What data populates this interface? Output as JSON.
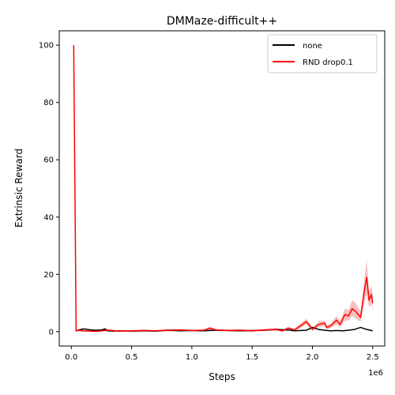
{
  "chart_data": {
    "type": "line",
    "title": "DMMaze-difficult++",
    "xlabel": "Steps",
    "ylabel": "Extrinsic Reward",
    "x_offset_label": "1e6",
    "xlim": [
      -0.1,
      2.6
    ],
    "ylim": [
      -5,
      105
    ],
    "xticks": [
      0.0,
      0.5,
      1.0,
      1.5,
      2.0,
      2.5
    ],
    "xtick_labels": [
      "0.0",
      "0.5",
      "1.0",
      "1.5",
      "2.0",
      "2.5"
    ],
    "yticks": [
      0,
      20,
      40,
      60,
      80,
      100
    ],
    "ytick_labels": [
      "0",
      "20",
      "40",
      "60",
      "80",
      "100"
    ],
    "grid": false,
    "legend_position": "top-right",
    "series": [
      {
        "name": "none",
        "color": "#000000",
        "x": [
          0.04,
          0.08,
          0.1,
          0.15,
          0.2,
          0.25,
          0.28,
          0.3,
          0.35,
          0.4,
          0.5,
          0.6,
          0.7,
          0.8,
          0.9,
          1.0,
          1.1,
          1.2,
          1.3,
          1.4,
          1.5,
          1.6,
          1.7,
          1.8,
          1.85,
          1.9,
          1.95,
          2.0,
          2.05,
          2.1,
          2.15,
          2.2,
          2.25,
          2.3,
          2.35,
          2.4,
          2.45,
          2.5
        ],
        "y": [
          0.3,
          0.8,
          1.0,
          0.7,
          0.5,
          0.6,
          1.0,
          0.3,
          0.2,
          0.3,
          0.2,
          0.3,
          0.2,
          0.5,
          0.3,
          0.4,
          0.3,
          0.5,
          0.4,
          0.3,
          0.4,
          0.5,
          0.8,
          0.6,
          0.3,
          0.4,
          0.5,
          1.5,
          0.8,
          0.5,
          0.3,
          0.4,
          0.3,
          0.5,
          0.8,
          1.5,
          0.8,
          0.3
        ]
      },
      {
        "name": "RND drop0.1",
        "color": "#ff0000",
        "band_color": "#f4a6a6",
        "x": [
          0.02,
          0.04,
          0.06,
          0.1,
          0.15,
          0.2,
          0.3,
          0.4,
          0.5,
          0.6,
          0.7,
          0.8,
          0.9,
          1.0,
          1.1,
          1.15,
          1.2,
          1.3,
          1.4,
          1.5,
          1.6,
          1.7,
          1.75,
          1.8,
          1.85,
          1.9,
          1.95,
          1.98,
          2.0,
          2.05,
          2.1,
          2.12,
          2.15,
          2.2,
          2.23,
          2.27,
          2.3,
          2.33,
          2.36,
          2.4,
          2.43,
          2.45,
          2.47,
          2.49,
          2.5
        ],
        "y": [
          100.0,
          0.3,
          0.5,
          0.3,
          0.2,
          0.1,
          0.5,
          0.2,
          0.3,
          0.4,
          0.3,
          0.5,
          0.6,
          0.4,
          0.5,
          1.2,
          0.6,
          0.4,
          0.5,
          0.3,
          0.6,
          0.8,
          0.3,
          1.2,
          0.6,
          2.0,
          3.5,
          2.0,
          0.8,
          2.5,
          3.0,
          1.5,
          2.0,
          4.0,
          2.5,
          6.0,
          5.5,
          8.0,
          7.0,
          5.0,
          14.0,
          19.0,
          11.0,
          13.0,
          10.0
        ],
        "band_low": [
          100.0,
          0.0,
          0.1,
          0.0,
          0.0,
          0.0,
          0.1,
          0.0,
          0.0,
          0.1,
          0.0,
          0.1,
          0.2,
          0.1,
          0.1,
          0.6,
          0.2,
          0.1,
          0.1,
          0.0,
          0.2,
          0.3,
          0.0,
          0.6,
          0.1,
          1.2,
          2.5,
          1.2,
          0.3,
          1.5,
          2.0,
          0.8,
          1.2,
          2.5,
          1.5,
          4.0,
          3.8,
          5.5,
          4.5,
          3.5,
          10.0,
          13.0,
          8.5,
          9.5,
          7.5
        ],
        "band_high": [
          100.0,
          0.6,
          0.9,
          0.6,
          0.5,
          0.3,
          0.9,
          0.5,
          0.6,
          0.8,
          0.6,
          0.9,
          1.0,
          0.7,
          0.9,
          1.8,
          1.0,
          0.8,
          0.9,
          0.6,
          1.0,
          1.3,
          0.7,
          1.8,
          1.1,
          2.8,
          4.5,
          2.8,
          1.4,
          3.5,
          4.0,
          2.3,
          2.8,
          5.5,
          3.8,
          8.0,
          7.5,
          11.0,
          10.0,
          7.0,
          18.0,
          25.0,
          14.0,
          16.0,
          12.5
        ]
      }
    ]
  }
}
